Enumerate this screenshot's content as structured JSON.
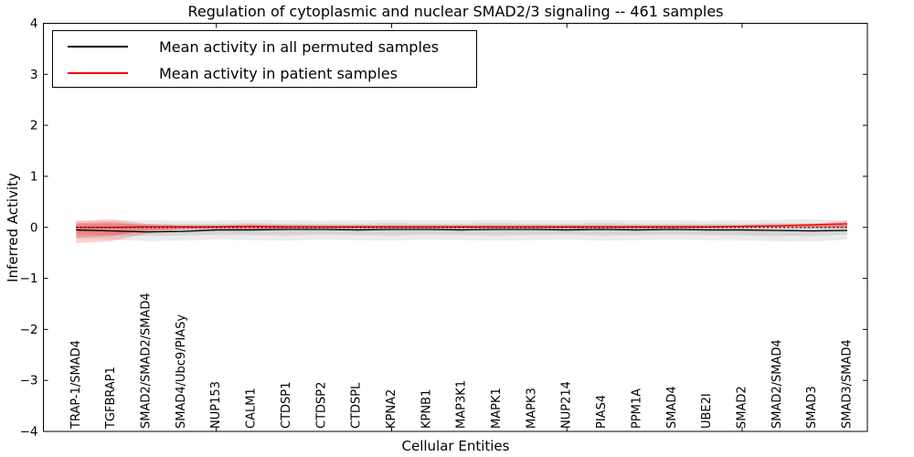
{
  "title": "Regulation of cytoplasmic and nuclear SMAD2/3 signaling -- 461 samples",
  "axes": {
    "x_label": "Cellular Entities",
    "y_label": "Inferred Activity"
  },
  "legend": {
    "entries": [
      {
        "label": "Mean activity in all permuted samples",
        "color": "#000000"
      },
      {
        "label": "Mean activity in patient samples",
        "color": "#ff0000"
      }
    ]
  },
  "colors": {
    "frame": "#000000",
    "background": "#ffffff",
    "permuted_line": "#000000",
    "patient_line": "#ff0000",
    "zero_line": "#000000",
    "permuted_band": "rgba(0,0,0,0.08)",
    "permuted_band_inner": "rgba(0,0,0,0.09)",
    "patient_band": "rgba(255,0,0,0.18)",
    "patient_band_inner": "rgba(255,0,0,0.22)"
  },
  "chart_data": {
    "type": "line",
    "title": "Regulation of cytoplasmic and nuclear SMAD2/3 signaling -- 461 samples",
    "xlabel": "Cellular Entities",
    "ylabel": "Inferred Activity",
    "ylim": [
      -4,
      4
    ],
    "grid": false,
    "legend_position": "upper left",
    "categories": [
      "TRAP-1/SMAD4",
      "TGFBRAP1",
      "SMAD2/SMAD2/SMAD4",
      "SMAD4/Ubc9/PIASy",
      "NUP153",
      "CALM1",
      "CTDSP1",
      "CTDSP2",
      "CTDSPL",
      "KPNA2",
      "KPNB1",
      "MAP3K1",
      "MAPK1",
      "MAPK3",
      "NUP214",
      "PIAS4",
      "PPM1A",
      "SMAD4",
      "UBE2I",
      "SMAD2",
      "SMAD2/SMAD4",
      "SMAD3",
      "SMAD3/SMAD4"
    ],
    "yticks": [
      4,
      3,
      2,
      1,
      0,
      -1,
      -2,
      -3,
      -4
    ],
    "ytick_labels": [
      "4",
      "3",
      "2",
      "1",
      "0",
      "−1",
      "−2",
      "−3",
      "−4"
    ],
    "xtick_label_indices": [
      4,
      9,
      14,
      19
    ],
    "zero_baseline": 0,
    "series": [
      {
        "name": "Mean activity in all permuted samples",
        "color": "#000000",
        "values": [
          -0.05,
          -0.07,
          -0.09,
          -0.08,
          -0.05,
          -0.05,
          -0.04,
          -0.04,
          -0.05,
          -0.04,
          -0.04,
          -0.05,
          -0.04,
          -0.04,
          -0.05,
          -0.04,
          -0.05,
          -0.04,
          -0.05,
          -0.05,
          -0.06,
          -0.07,
          -0.06
        ]
      },
      {
        "name": "Mean activity in patient samples",
        "color": "#ff0000",
        "values": [
          0.0,
          0.0,
          0.01,
          0.01,
          0.01,
          0.02,
          0.01,
          0.01,
          0.01,
          0.01,
          0.01,
          0.01,
          0.01,
          0.01,
          0.01,
          0.01,
          0.01,
          0.01,
          0.01,
          0.02,
          0.03,
          0.05,
          0.07
        ]
      }
    ],
    "bands": [
      {
        "name": "permuted-band-outer",
        "color_key": "permuted_band",
        "upper": [
          0.12,
          0.13,
          0.14,
          0.13,
          0.13,
          0.15,
          0.14,
          0.13,
          0.14,
          0.15,
          0.14,
          0.14,
          0.15,
          0.14,
          0.14,
          0.15,
          0.14,
          0.14,
          0.13,
          0.14,
          0.15,
          0.16,
          0.14
        ],
        "lower": [
          -0.22,
          -0.24,
          -0.27,
          -0.26,
          -0.24,
          -0.25,
          -0.26,
          -0.24,
          -0.25,
          -0.26,
          -0.24,
          -0.25,
          -0.26,
          -0.25,
          -0.24,
          -0.26,
          -0.25,
          -0.24,
          -0.25,
          -0.26,
          -0.27,
          -0.28,
          -0.24
        ]
      },
      {
        "name": "permuted-band-inner",
        "color_key": "permuted_band_inner",
        "upper": [
          0.06,
          0.07,
          0.07,
          0.07,
          0.07,
          0.08,
          0.07,
          0.07,
          0.07,
          0.08,
          0.07,
          0.07,
          0.08,
          0.07,
          0.07,
          0.08,
          0.07,
          0.07,
          0.07,
          0.07,
          0.08,
          0.08,
          0.07
        ],
        "lower": [
          -0.13,
          -0.15,
          -0.17,
          -0.16,
          -0.14,
          -0.15,
          -0.16,
          -0.14,
          -0.15,
          -0.16,
          -0.14,
          -0.15,
          -0.16,
          -0.15,
          -0.14,
          -0.16,
          -0.15,
          -0.14,
          -0.15,
          -0.16,
          -0.17,
          -0.17,
          -0.14
        ]
      },
      {
        "name": "patient-band-outer",
        "color_key": "patient_band",
        "upper": [
          0.13,
          0.16,
          0.07,
          0.04,
          0.04,
          0.06,
          0.05,
          0.04,
          0.04,
          0.04,
          0.04,
          0.04,
          0.04,
          0.04,
          0.04,
          0.04,
          0.04,
          0.04,
          0.04,
          0.05,
          0.06,
          0.07,
          0.13
        ],
        "lower": [
          -0.31,
          -0.27,
          -0.12,
          -0.05,
          -0.04,
          -0.05,
          -0.04,
          -0.03,
          -0.03,
          -0.03,
          -0.03,
          -0.03,
          -0.03,
          -0.03,
          -0.03,
          -0.03,
          -0.03,
          -0.03,
          -0.02,
          -0.02,
          -0.01,
          -0.01,
          -0.02
        ]
      },
      {
        "name": "patient-band-inner",
        "color_key": "patient_band_inner",
        "upper": [
          0.08,
          0.1,
          0.04,
          0.03,
          0.03,
          0.04,
          0.03,
          0.03,
          0.03,
          0.03,
          0.03,
          0.03,
          0.03,
          0.03,
          0.03,
          0.03,
          0.03,
          0.03,
          0.03,
          0.03,
          0.04,
          0.05,
          0.1
        ],
        "lower": [
          -0.2,
          -0.17,
          -0.07,
          -0.03,
          -0.02,
          -0.03,
          -0.02,
          -0.02,
          -0.02,
          -0.02,
          -0.02,
          -0.02,
          -0.02,
          -0.02,
          -0.02,
          -0.02,
          -0.02,
          -0.02,
          -0.01,
          -0.01,
          0.0,
          0.0,
          -0.01
        ]
      }
    ]
  }
}
